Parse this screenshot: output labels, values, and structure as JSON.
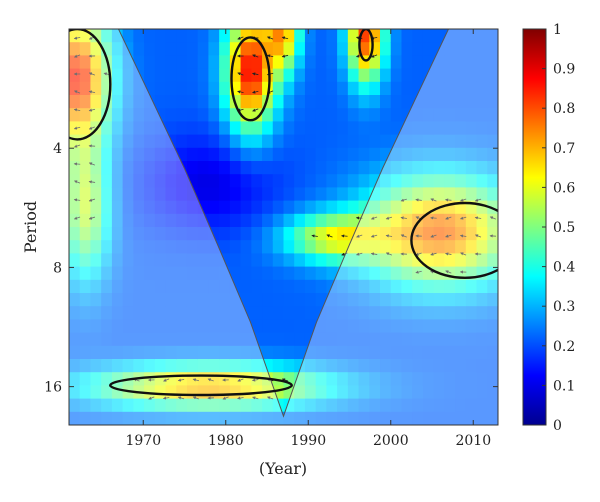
{
  "chart_data": {
    "type": "heatmap",
    "title": "",
    "xlabel": "(Year)",
    "ylabel": "Period",
    "x_range": [
      1961,
      2013
    ],
    "y_range": [
      2,
      20
    ],
    "y_scale": "log2",
    "y_inverted": true,
    "x_ticks": [
      1970,
      1980,
      1990,
      2000,
      2010
    ],
    "x_tick_labels": [
      "1970",
      "1980",
      "1990",
      "2000",
      "2010"
    ],
    "y_ticks": [
      4,
      8,
      16
    ],
    "y_tick_labels": [
      "4",
      "8",
      "16"
    ],
    "colorbar": {
      "range": [
        0,
        1
      ],
      "ticks": [
        0,
        0.1,
        0.2,
        0.3,
        0.4,
        0.5,
        0.6,
        0.7,
        0.8,
        0.9,
        1
      ],
      "tick_labels": [
        "0",
        "0.1",
        "0.2",
        "0.3",
        "0.4",
        "0.5",
        "0.6",
        "0.7",
        "0.8",
        "0.9",
        "1"
      ],
      "colormap": "jet"
    },
    "cone_of_influence": {
      "year": [
        1967,
        1971,
        1975,
        1979,
        1983,
        1987,
        1991,
        1995,
        1999,
        2003,
        2007
      ],
      "period": [
        2,
        3,
        4.5,
        7,
        11,
        19,
        11,
        7,
        4.5,
        3,
        2
      ]
    },
    "significant_regions": [
      {
        "center_year": 1962,
        "center_period": 2.6,
        "year_halfwidth": 4,
        "period_span": [
          2,
          3.8
        ]
      },
      {
        "center_year": 1983,
        "center_period": 2.6,
        "year_halfwidth": 2.3,
        "period_span": [
          2.1,
          3.4
        ]
      },
      {
        "center_year": 1997,
        "center_period": 2.1,
        "year_halfwidth": 0.8,
        "period_span": [
          2,
          2.4
        ]
      },
      {
        "center_year": 2009,
        "center_period": 6.8,
        "year_halfwidth": 6.5,
        "period_span": [
          5.5,
          8.5
        ]
      },
      {
        "center_year": 1977,
        "center_period": 15.8,
        "year_halfwidth": 11,
        "period_span": [
          15,
          16.8
        ]
      }
    ]
  }
}
